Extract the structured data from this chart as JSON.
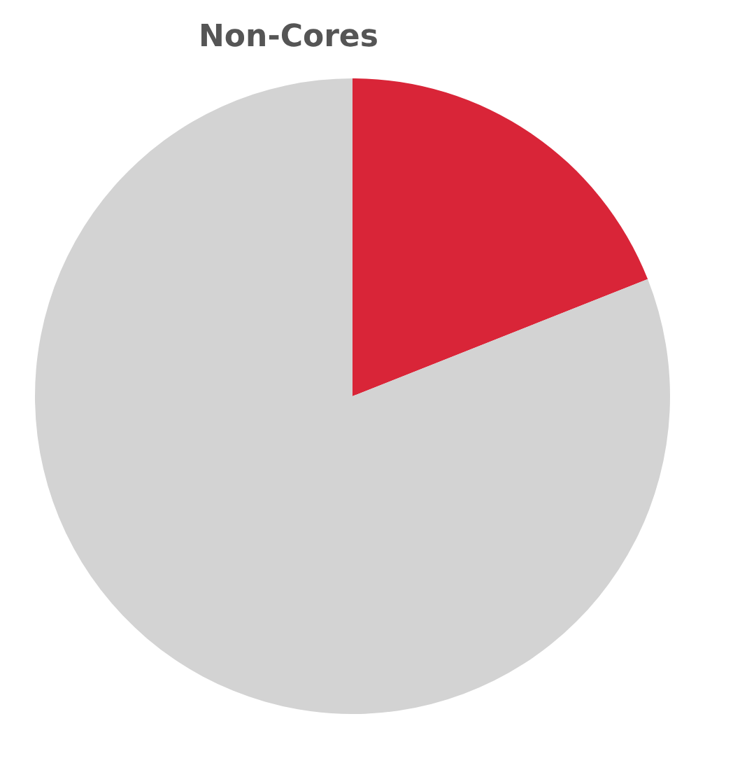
{
  "chart_data": {
    "type": "pie",
    "title": "Non-Cores",
    "categories": [
      null,
      null
    ],
    "values": [
      19,
      81
    ],
    "colors": [
      "#d92538",
      "#d3d3d3"
    ],
    "legend": false
  }
}
